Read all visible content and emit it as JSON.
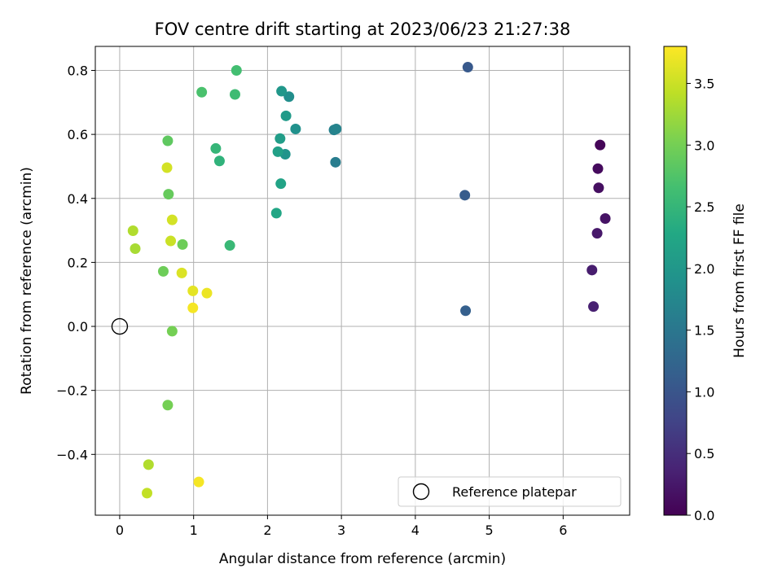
{
  "chart_data": {
    "type": "scatter",
    "title": "FOV centre drift starting at 2023/06/23 21:27:38",
    "xlabel": "Angular distance from reference (arcmin)",
    "ylabel": "Rotation from reference (arcmin)",
    "xlim": [
      -0.33,
      6.9
    ],
    "ylim": [
      -0.59,
      0.875
    ],
    "xticks": [
      0,
      1,
      2,
      3,
      4,
      5,
      6
    ],
    "xtick_labels": [
      "0",
      "1",
      "2",
      "3",
      "4",
      "5",
      "6"
    ],
    "yticks": [
      -0.4,
      -0.2,
      0.0,
      0.2,
      0.4,
      0.6,
      0.8
    ],
    "ytick_labels": [
      "−0.4",
      "−0.2",
      "0.0",
      "0.2",
      "0.4",
      "0.6",
      "0.8"
    ],
    "grid": true,
    "colormap": "viridis",
    "colorbar": {
      "label": "Hours from first FF file",
      "range": [
        0.0,
        3.8
      ],
      "ticks": [
        0.0,
        0.5,
        1.0,
        1.5,
        2.0,
        2.5,
        3.0,
        3.5
      ],
      "tick_labels": [
        "0.0",
        "0.5",
        "1.0",
        "1.5",
        "2.0",
        "2.5",
        "3.0",
        "3.5"
      ]
    },
    "legend": {
      "label": "Reference platepar",
      "placement": "lower-right"
    },
    "reference_point": {
      "x": 0,
      "y": 0
    },
    "points": [
      {
        "x": 6.5,
        "y": 0.567,
        "c": 0.05
      },
      {
        "x": 6.47,
        "y": 0.493,
        "c": 0.1
      },
      {
        "x": 6.48,
        "y": 0.433,
        "c": 0.15
      },
      {
        "x": 6.57,
        "y": 0.337,
        "c": 0.2
      },
      {
        "x": 6.46,
        "y": 0.291,
        "c": 0.25
      },
      {
        "x": 6.39,
        "y": 0.176,
        "c": 0.3
      },
      {
        "x": 6.41,
        "y": 0.062,
        "c": 0.35
      },
      {
        "x": 4.71,
        "y": 0.81,
        "c": 1.05
      },
      {
        "x": 4.67,
        "y": 0.41,
        "c": 1.1
      },
      {
        "x": 4.68,
        "y": 0.049,
        "c": 1.15
      },
      {
        "x": 2.92,
        "y": 0.513,
        "c": 1.6
      },
      {
        "x": 2.9,
        "y": 0.614,
        "c": 1.65
      },
      {
        "x": 2.93,
        "y": 0.617,
        "c": 1.7
      },
      {
        "x": 2.29,
        "y": 0.718,
        "c": 1.85
      },
      {
        "x": 2.38,
        "y": 0.617,
        "c": 1.9
      },
      {
        "x": 2.24,
        "y": 0.538,
        "c": 1.95
      },
      {
        "x": 2.19,
        "y": 0.735,
        "c": 2.0
      },
      {
        "x": 2.25,
        "y": 0.658,
        "c": 2.05
      },
      {
        "x": 2.17,
        "y": 0.587,
        "c": 2.1
      },
      {
        "x": 2.14,
        "y": 0.546,
        "c": 2.15
      },
      {
        "x": 2.18,
        "y": 0.446,
        "c": 2.2
      },
      {
        "x": 2.12,
        "y": 0.354,
        "c": 2.25
      },
      {
        "x": 1.35,
        "y": 0.517,
        "c": 2.45
      },
      {
        "x": 1.3,
        "y": 0.556,
        "c": 2.5
      },
      {
        "x": 1.49,
        "y": 0.253,
        "c": 2.55
      },
      {
        "x": 1.56,
        "y": 0.725,
        "c": 2.6
      },
      {
        "x": 1.58,
        "y": 0.8,
        "c": 2.65
      },
      {
        "x": 1.11,
        "y": 0.732,
        "c": 2.7
      },
      {
        "x": 0.65,
        "y": 0.58,
        "c": 2.85
      },
      {
        "x": 0.66,
        "y": 0.413,
        "c": 2.9
      },
      {
        "x": 0.85,
        "y": 0.256,
        "c": 2.95
      },
      {
        "x": 0.59,
        "y": 0.172,
        "c": 2.95
      },
      {
        "x": 0.71,
        "y": -0.015,
        "c": 3.0
      },
      {
        "x": 0.65,
        "y": -0.246,
        "c": 3.0
      },
      {
        "x": 0.18,
        "y": 0.299,
        "c": 3.35
      },
      {
        "x": 0.21,
        "y": 0.243,
        "c": 3.3
      },
      {
        "x": 0.39,
        "y": -0.432,
        "c": 3.35
      },
      {
        "x": 0.37,
        "y": -0.521,
        "c": 3.45
      },
      {
        "x": 0.64,
        "y": 0.496,
        "c": 3.55
      },
      {
        "x": 0.71,
        "y": 0.333,
        "c": 3.55
      },
      {
        "x": 0.69,
        "y": 0.267,
        "c": 3.5
      },
      {
        "x": 0.84,
        "y": 0.167,
        "c": 3.6
      },
      {
        "x": 0.99,
        "y": 0.111,
        "c": 3.65
      },
      {
        "x": 1.18,
        "y": 0.104,
        "c": 3.7
      },
      {
        "x": 0.99,
        "y": 0.058,
        "c": 3.75
      },
      {
        "x": 1.07,
        "y": -0.486,
        "c": 3.75
      }
    ]
  }
}
